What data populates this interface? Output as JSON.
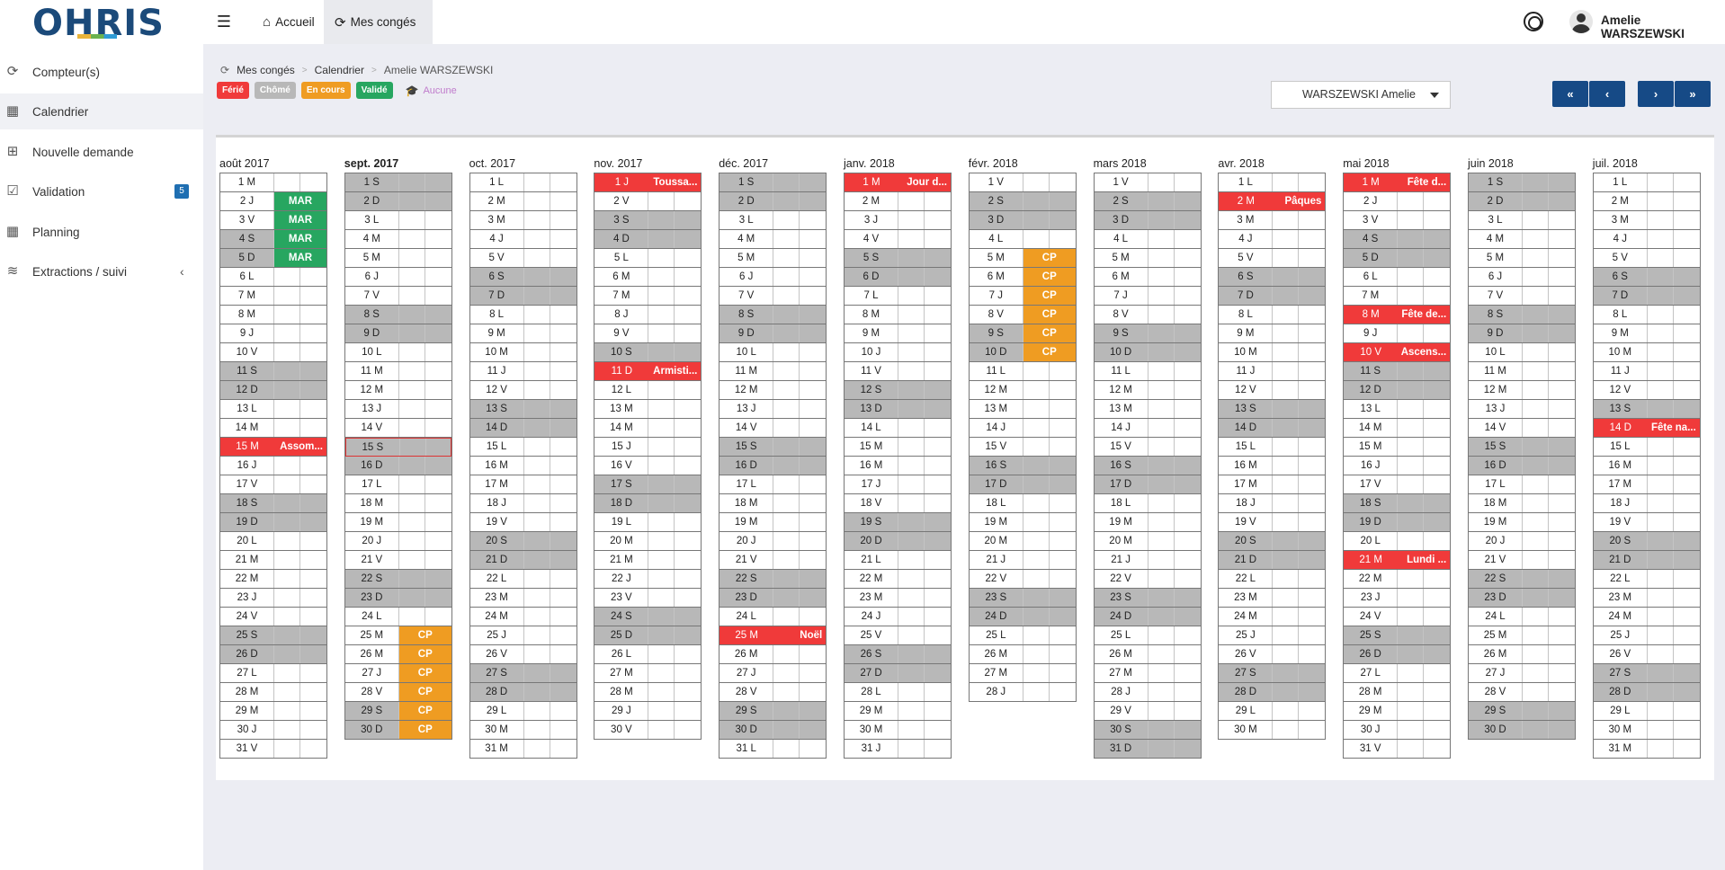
{
  "app": {
    "logo_text": "OHRIS"
  },
  "topbar": {
    "home_label": "Accueil",
    "leave_label": "Mes congés",
    "user_name": "Amelie WARSZEWSKI"
  },
  "sidebar": {
    "items": [
      {
        "label": "Compteur(s)",
        "icon": "refresh-icon"
      },
      {
        "label": "Calendrier",
        "icon": "calendar-icon",
        "active": true
      },
      {
        "label": "Nouvelle demande",
        "icon": "calendar-plus-icon"
      },
      {
        "label": "Validation",
        "icon": "calendar-check-icon",
        "badge": "5"
      },
      {
        "label": "Planning",
        "icon": "calendar-icon"
      },
      {
        "label": "Extractions / suivi",
        "icon": "database-icon",
        "chevron": true
      }
    ]
  },
  "breadcrumb": {
    "items": [
      "Mes congés",
      "Calendrier",
      "Amelie WARSZEWSKI"
    ]
  },
  "legend": {
    "items": [
      {
        "label": "Férié",
        "color": "#f03a3a"
      },
      {
        "label": "Chômé",
        "color": "#b8b8b8"
      },
      {
        "label": "En cours",
        "color": "#ef9c22"
      },
      {
        "label": "Validé",
        "color": "#27a660"
      }
    ],
    "none_label": "Aucune"
  },
  "employee_select": {
    "value": "WARSZEWSKI Amelie"
  },
  "nav_buttons": {
    "first": "«",
    "prev": "‹",
    "next": "›",
    "last": "»"
  },
  "colors": {
    "holiday": "#f03a3a",
    "pending": "#ef9c22",
    "validated": "#27a660",
    "nonworking": "#b8b8b8"
  },
  "calendar": {
    "months": [
      {
        "title": "août 2017",
        "days": 31,
        "start_wd": 2,
        "events": [
          {
            "d": 2,
            "t": "MAR",
            "c": "validated"
          },
          {
            "d": 3,
            "t": "MAR",
            "c": "validated"
          },
          {
            "d": 4,
            "t": "MAR",
            "c": "validated"
          },
          {
            "d": 5,
            "t": "MAR",
            "c": "validated"
          },
          {
            "d": 15,
            "t": "Assom...",
            "c": "holiday"
          }
        ]
      },
      {
        "title": "sept. 2017",
        "days": 30,
        "start_wd": 5,
        "bold": true,
        "today": 15,
        "events": [
          {
            "d": 25,
            "t": "CP",
            "c": "pending"
          },
          {
            "d": 26,
            "t": "CP",
            "c": "pending"
          },
          {
            "d": 27,
            "t": "CP",
            "c": "pending"
          },
          {
            "d": 28,
            "t": "CP",
            "c": "pending"
          },
          {
            "d": 29,
            "t": "CP",
            "c": "pending"
          },
          {
            "d": 30,
            "t": "CP",
            "c": "pending"
          }
        ]
      },
      {
        "title": "oct. 2017",
        "days": 31,
        "start_wd": 0,
        "events": []
      },
      {
        "title": "nov. 2017",
        "days": 30,
        "start_wd": 3,
        "events": [
          {
            "d": 1,
            "t": "Toussa...",
            "c": "holiday"
          },
          {
            "d": 11,
            "t": "Armisti...",
            "c": "holiday"
          }
        ]
      },
      {
        "title": "déc. 2017",
        "days": 31,
        "start_wd": 5,
        "events": [
          {
            "d": 25,
            "t": "Noël",
            "c": "holiday"
          }
        ]
      },
      {
        "title": "janv. 2018",
        "days": 31,
        "start_wd": 1,
        "events": [
          {
            "d": 1,
            "t": "Jour d...",
            "c": "holiday"
          }
        ]
      },
      {
        "title": "févr. 2018",
        "days": 28,
        "start_wd": 4,
        "events": [
          {
            "d": 5,
            "t": "CP",
            "c": "pending"
          },
          {
            "d": 6,
            "t": "CP",
            "c": "pending"
          },
          {
            "d": 7,
            "t": "CP",
            "c": "pending"
          },
          {
            "d": 8,
            "t": "CP",
            "c": "pending"
          },
          {
            "d": 9,
            "t": "CP",
            "c": "pending"
          },
          {
            "d": 10,
            "t": "CP",
            "c": "pending"
          }
        ]
      },
      {
        "title": "mars 2018",
        "days": 31,
        "start_wd": 4,
        "events": []
      },
      {
        "title": "avr. 2018",
        "days": 30,
        "start_wd": 0,
        "events": [
          {
            "d": 2,
            "t": "Pâques",
            "c": "holiday"
          }
        ]
      },
      {
        "title": "mai 2018",
        "days": 31,
        "start_wd": 2,
        "events": [
          {
            "d": 1,
            "t": "Fête d...",
            "c": "holiday"
          },
          {
            "d": 8,
            "t": "Fête de...",
            "c": "holiday"
          },
          {
            "d": 10,
            "t": "Ascens...",
            "c": "holiday"
          },
          {
            "d": 21,
            "t": "Lundi ...",
            "c": "holiday"
          }
        ]
      },
      {
        "title": "juin 2018",
        "days": 30,
        "start_wd": 5,
        "events": []
      },
      {
        "title": "juil. 2018",
        "days": 31,
        "start_wd": 0,
        "events": [
          {
            "d": 14,
            "t": "Fête na...",
            "c": "holiday"
          }
        ]
      }
    ]
  }
}
